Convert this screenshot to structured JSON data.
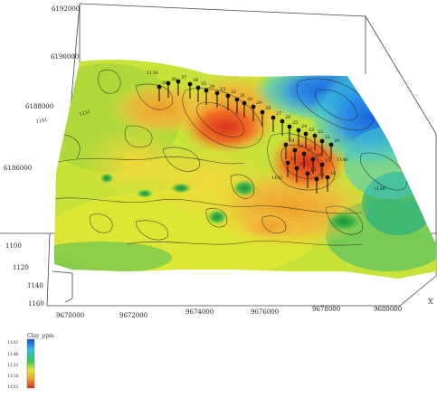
{
  "chart_data": {
    "type": "surface",
    "northing_ticks": [
      "6192000",
      "6190000",
      "6188000",
      "6186000"
    ],
    "easting_ticks": [
      "9670000",
      "9672000",
      "9674000",
      "9676000",
      "9678000",
      "9680000"
    ],
    "z_ticks": [
      "1100",
      "1120",
      "1140",
      "1160"
    ],
    "axis_corner_label": "X",
    "legend": {
      "title": "Clay_ppm",
      "ticks": [
        "1161",
        "1146",
        "1131",
        "1116",
        "1101"
      ],
      "colors": [
        "#1a4fd6",
        "#2fc0e0",
        "#39c35a",
        "#d8e632",
        "#f2a534",
        "#d9301b"
      ]
    },
    "contour_labels": [
      "1131",
      "1136",
      "1141",
      "1146",
      "1131",
      "1136"
    ],
    "well_labels": [
      "39",
      "38",
      "37",
      "36",
      "35",
      "34",
      "33",
      "32",
      "31",
      "30",
      "29",
      "28",
      "27",
      "26",
      "25",
      "24",
      "23",
      "22",
      "21",
      "20",
      "19",
      "18",
      "17",
      "16",
      "15",
      "14",
      "13",
      "12",
      "11",
      "10"
    ]
  }
}
